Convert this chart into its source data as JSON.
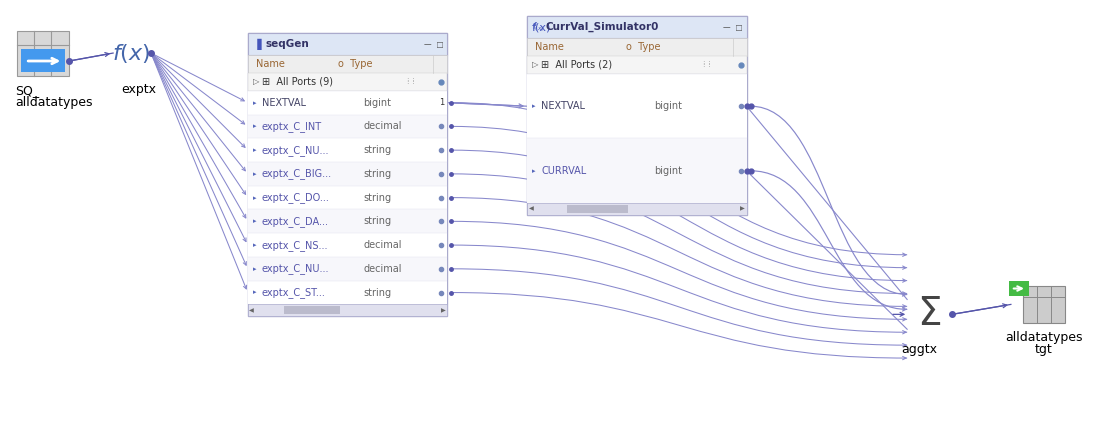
{
  "bg_color": "#ffffff",
  "line_color": "#8888cc",
  "line_color_dark": "#5555aa",
  "sq_label": "SQ_\nalldatatypes",
  "exptx_label": "exptx",
  "seqgen_title": "seqGen",
  "seqgen_header_name": "Name",
  "seqgen_header_type": "Type",
  "seqgen_group": "All Ports (9)",
  "seqgen_rows": [
    [
      "NEXTVAL",
      "bigint",
      true
    ],
    [
      "exptx_C_INT",
      "decimal",
      false
    ],
    [
      "exptx_C_NU...",
      "string",
      false
    ],
    [
      "exptx_C_BIG...",
      "string",
      false
    ],
    [
      "exptx_C_DO...",
      "string",
      false
    ],
    [
      "exptx_C_DA...",
      "string",
      false
    ],
    [
      "exptx_C_NS...",
      "decimal",
      false
    ],
    [
      "exptx_C_NU...",
      "decimal",
      false
    ],
    [
      "exptx_C_ST...",
      "string",
      false
    ]
  ],
  "currval_title": "CurrVal_Simulator0",
  "currval_header_name": "Name",
  "currval_header_type": "Type",
  "currval_group": "All Ports (2)",
  "currval_rows": [
    [
      "NEXTVAL",
      "bigint"
    ],
    [
      "CURRVAL",
      "bigint"
    ]
  ],
  "agg_label": "aggtx",
  "tgt_label1": "alldatatypes",
  "tgt_label2": "tgt",
  "font_panel_title": 7.5,
  "font_header": 7,
  "font_row": 7,
  "font_group": 7,
  "font_label": 9
}
